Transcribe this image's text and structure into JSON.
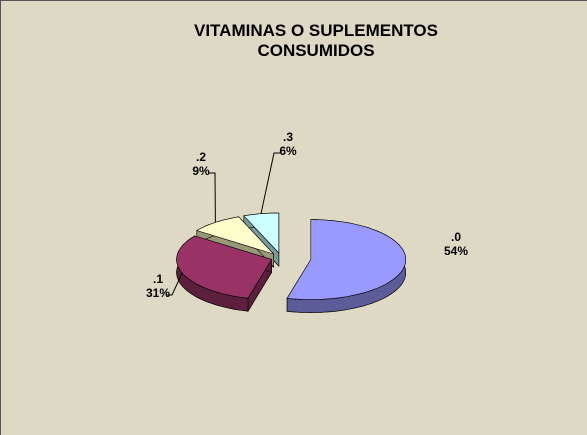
{
  "chart_data": {
    "type": "pie3d",
    "title": "VITAMINAS O SUPLEMENTOS CONSUMIDOS",
    "categories": [
      ".0",
      ".1",
      ".2",
      ".3"
    ],
    "values": [
      54,
      31,
      9,
      6
    ],
    "value_labels": [
      "54%",
      "31%",
      "9%",
      "6%"
    ],
    "colors": [
      "#9999ff",
      "#993366",
      "#ffffcc",
      "#ccffff"
    ]
  }
}
